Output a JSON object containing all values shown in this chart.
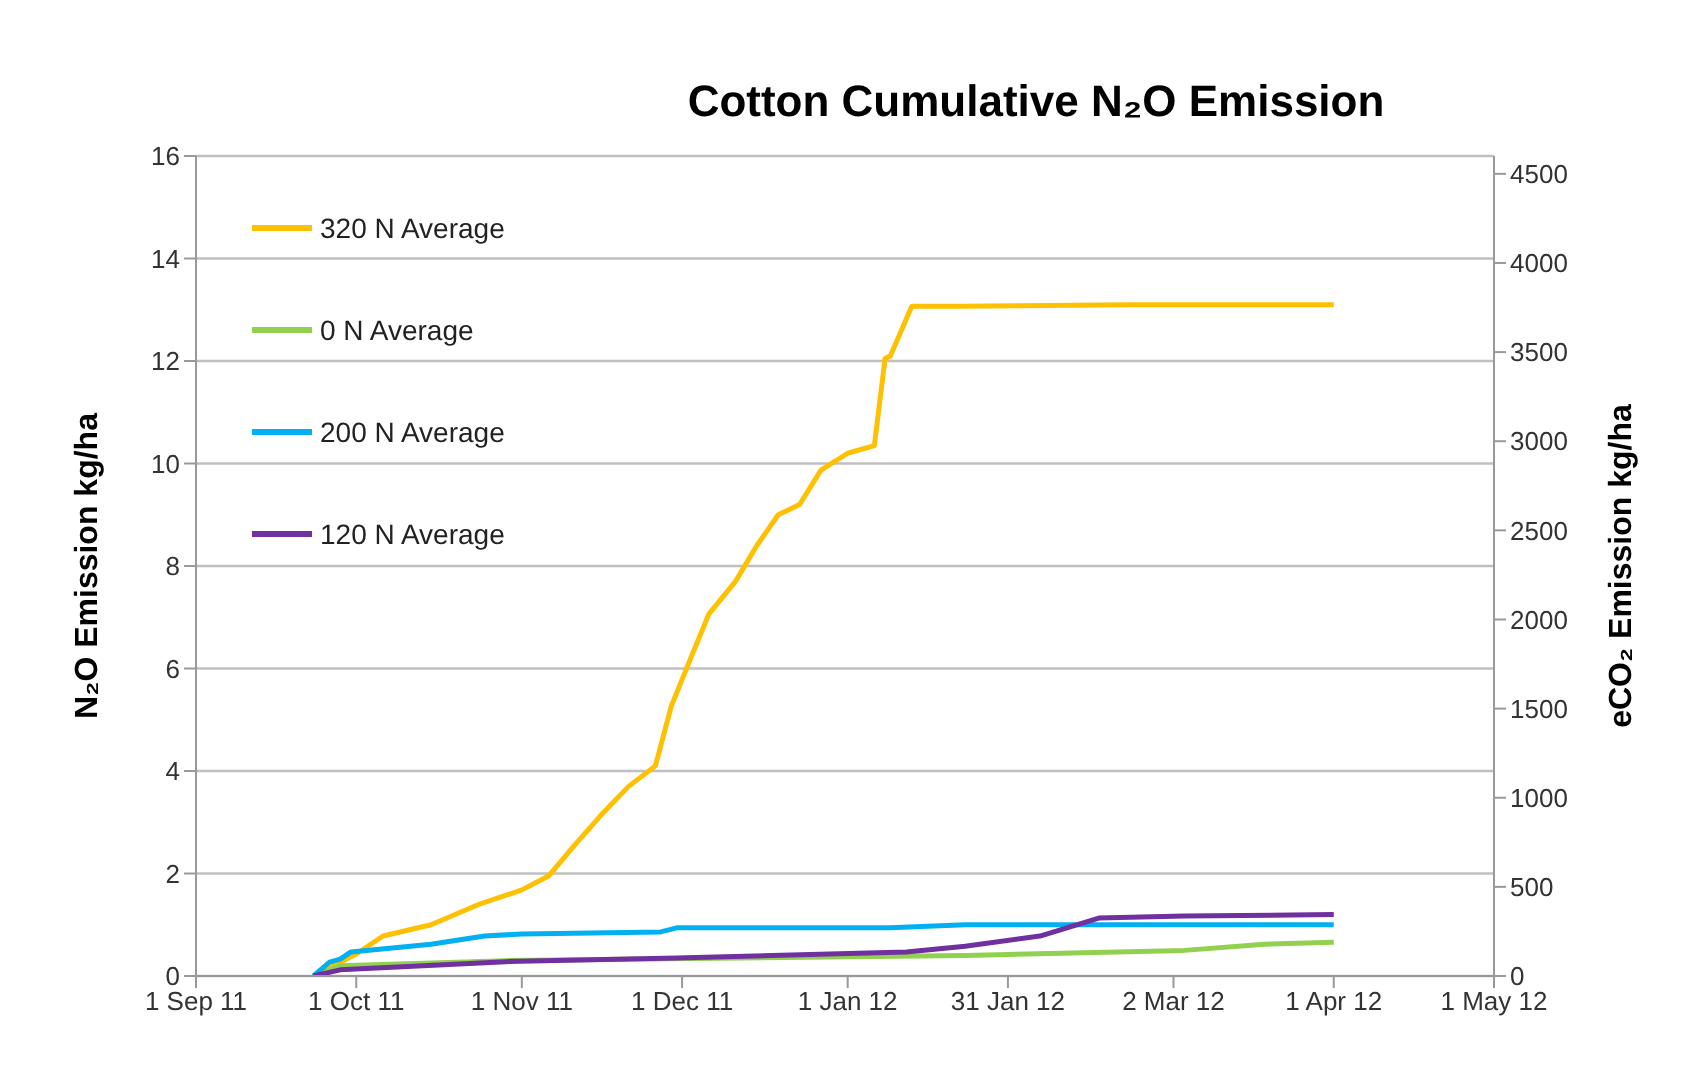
{
  "chart_data": {
    "type": "line",
    "title": "Cotton Cumulative N₂O Emission",
    "ylabel": "N₂O Emission kg/ha",
    "y2label": "eCO₂ Emission kg/ha",
    "xlim": [
      "2011-09-01",
      "2012-05-01"
    ],
    "xticks": [
      {
        "value": "2011-09-01",
        "label": "1 Sep 11"
      },
      {
        "value": "2011-10-01",
        "label": "1 Oct 11"
      },
      {
        "value": "2011-11-01",
        "label": "1 Nov 11"
      },
      {
        "value": "2011-12-01",
        "label": "1 Dec 11"
      },
      {
        "value": "2012-01-01",
        "label": "1 Jan 12"
      },
      {
        "value": "2012-01-31",
        "label": "31 Jan 12"
      },
      {
        "value": "2012-03-02",
        "label": "2 Mar 12"
      },
      {
        "value": "2012-04-01",
        "label": "1 Apr 12"
      },
      {
        "value": "2012-05-01",
        "label": "1 May 12"
      }
    ],
    "ylim": [
      0,
      16
    ],
    "yticks": [
      0,
      2,
      4,
      6,
      8,
      10,
      12,
      14,
      16
    ],
    "y2lim": [
      0,
      4600
    ],
    "y2ticks": [
      0,
      500,
      1000,
      1500,
      2000,
      2500,
      3000,
      3500,
      4000,
      4500
    ],
    "grid": "y",
    "legend": "top left",
    "marker": "none",
    "line_style": "solid",
    "series": [
      {
        "name": "320 N Average",
        "color": "#ffc000",
        "x": [
          "2011-09-23",
          "2011-10-01",
          "2011-10-06",
          "2011-10-15",
          "2011-10-24",
          "2011-11-01",
          "2011-11-06",
          "2011-11-11",
          "2011-11-16",
          "2011-11-21",
          "2011-11-26",
          "2011-11-29",
          "2011-12-03",
          "2011-12-06",
          "2011-12-11",
          "2011-12-15",
          "2011-12-19",
          "2011-12-23",
          "2011-12-27",
          "2012-01-01",
          "2012-01-06",
          "2012-01-08",
          "2012-01-09",
          "2012-01-13",
          "2012-01-22",
          "2012-02-23",
          "2012-04-01"
        ],
        "values": [
          0,
          0.43,
          0.78,
          1.0,
          1.4,
          1.68,
          1.95,
          2.57,
          3.16,
          3.7,
          4.1,
          5.27,
          6.3,
          7.06,
          7.7,
          8.4,
          9.0,
          9.2,
          9.87,
          10.2,
          10.35,
          12.05,
          12.1,
          13.07,
          13.07,
          13.1,
          13.1
        ]
      },
      {
        "name": "0 N Average",
        "color": "#92d050",
        "x": [
          "2011-09-23",
          "2011-09-28",
          "2011-10-29",
          "2012-01-23",
          "2012-03-04",
          "2012-03-19",
          "2012-04-01"
        ],
        "values": [
          0,
          0.2,
          0.3,
          0.4,
          0.5,
          0.62,
          0.66
        ]
      },
      {
        "name": "200 N Average",
        "color": "#00b0f0",
        "x": [
          "2011-09-23",
          "2011-09-26",
          "2011-09-28",
          "2011-09-30",
          "2011-10-15",
          "2011-10-25",
          "2011-11-01",
          "2011-11-27",
          "2011-11-30",
          "2012-01-09",
          "2012-01-23",
          "2012-04-01"
        ],
        "values": [
          0,
          0.27,
          0.33,
          0.47,
          0.62,
          0.78,
          0.82,
          0.86,
          0.94,
          0.94,
          1.0,
          1.0
        ]
      },
      {
        "name": "120 N Average",
        "color": "#7030a0",
        "x": [
          "2011-09-23",
          "2011-09-28",
          "2011-10-29",
          "2011-11-30",
          "2012-01-12",
          "2012-01-23",
          "2012-02-06",
          "2012-02-17",
          "2012-03-04",
          "2012-04-01"
        ],
        "values": [
          0,
          0.12,
          0.28,
          0.35,
          0.47,
          0.58,
          0.78,
          1.13,
          1.17,
          1.2
        ]
      }
    ]
  }
}
